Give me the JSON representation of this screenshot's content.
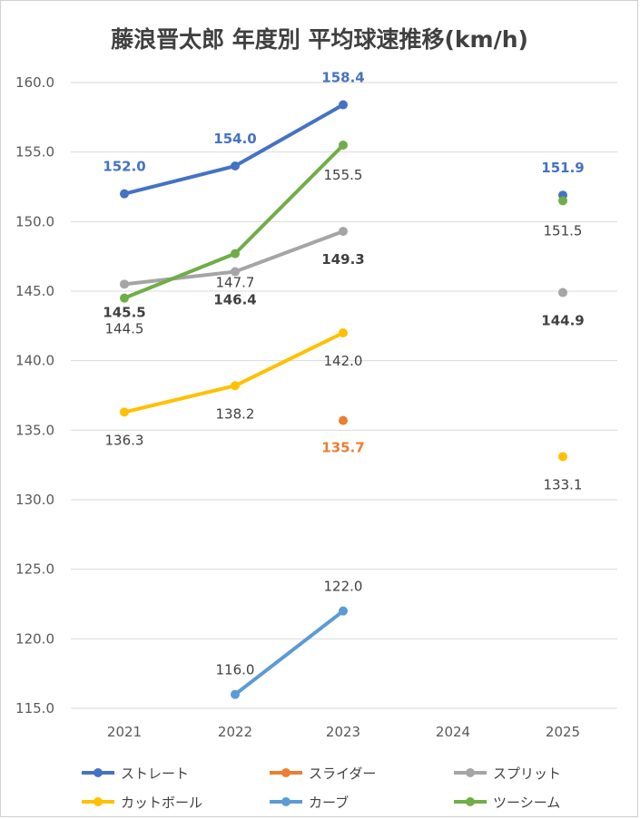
{
  "chart_data": {
    "type": "line",
    "title": "藤浪晋太郎 年度別 平均球速推移(km/h)",
    "categories": [
      "2021",
      "2022",
      "2023",
      "2024",
      "2025"
    ],
    "ylim": [
      115,
      160
    ],
    "yticks": [
      "160.0",
      "155.0",
      "150.0",
      "145.0",
      "140.0",
      "135.0",
      "130.0",
      "125.0",
      "120.0",
      "115.0"
    ],
    "grid": true,
    "legend_position": "bottom",
    "series": [
      {
        "name": "ストレート",
        "color": "#4472C4",
        "values": [
          152.0,
          154.0,
          158.4,
          null,
          151.9
        ],
        "labels": [
          "152.0",
          "154.0",
          "158.4",
          "",
          "151.9"
        ],
        "label_color": "#4472C4",
        "label_bold": true
      },
      {
        "name": "スライダー",
        "color": "#ED7D31",
        "values": [
          null,
          null,
          135.7,
          null,
          null
        ],
        "labels": [
          "",
          "",
          "135.7",
          "",
          ""
        ],
        "label_color": "#ED7D31",
        "label_bold": true
      },
      {
        "name": "スプリット",
        "color": "#A5A5A5",
        "values": [
          145.5,
          146.4,
          149.3,
          null,
          144.9
        ],
        "labels": [
          "145.5",
          "146.4",
          "149.3",
          "",
          "144.9"
        ],
        "label_color": "#404040",
        "label_bold": true
      },
      {
        "name": "カットボール",
        "color": "#FFC000",
        "values": [
          136.3,
          138.2,
          142.0,
          null,
          133.1
        ],
        "labels": [
          "136.3",
          "138.2",
          "142.0",
          "",
          "133.1"
        ],
        "label_color": "#404040",
        "label_bold": false
      },
      {
        "name": "カーブ",
        "color": "#5B9BD5",
        "values": [
          null,
          116.0,
          122.0,
          null,
          null
        ],
        "labels": [
          "",
          "116.0",
          "122.0",
          "",
          ""
        ],
        "label_color": "#404040",
        "label_bold": false
      },
      {
        "name": "ツーシーム",
        "color": "#70AD47",
        "values": [
          144.5,
          147.7,
          155.5,
          null,
          151.5
        ],
        "labels": [
          "144.5",
          "147.7",
          "155.5",
          "",
          "151.5"
        ],
        "label_color": "#404040",
        "label_bold": false
      }
    ]
  }
}
